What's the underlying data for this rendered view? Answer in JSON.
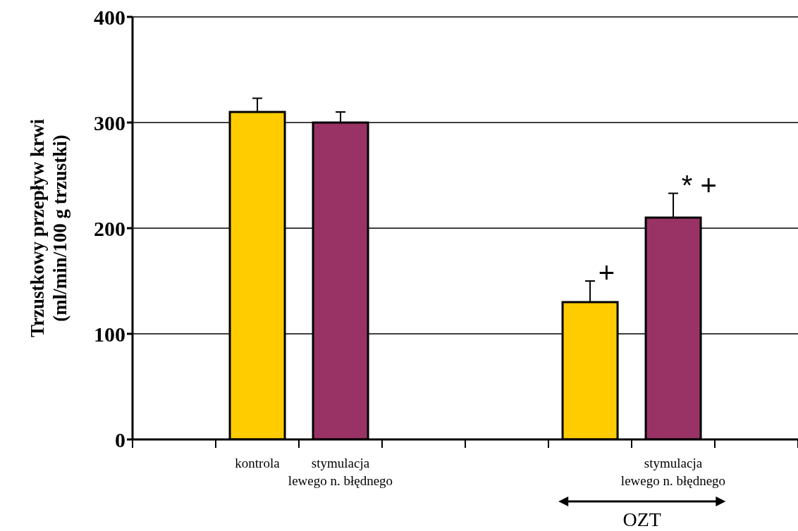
{
  "chart_data": {
    "type": "bar",
    "ylabel": "Trzustkowy przepływ krwi\n(ml/min/100 g trzustki)",
    "categories": [
      null,
      "kontrola",
      "stymulacja\nlewego n. błędnego",
      null,
      null,
      null,
      "stymulacja\nlewego n. błędnego",
      null
    ],
    "values": [
      null,
      310,
      300,
      null,
      null,
      130,
      210,
      null
    ],
    "errors": [
      null,
      13,
      10,
      null,
      null,
      20,
      23,
      null
    ],
    "colors": [
      "#ffcc00",
      "#ffcc00",
      "#993366",
      "#ffcc00",
      "#ffcc00",
      "#ffcc00",
      "#993366",
      "#ffcc00"
    ],
    "ylim": [
      0,
      400
    ],
    "yticks": [
      0,
      100,
      200,
      300,
      400
    ],
    "grid": "y",
    "annotations": [
      "+",
      "* +",
      "OZT"
    ]
  }
}
